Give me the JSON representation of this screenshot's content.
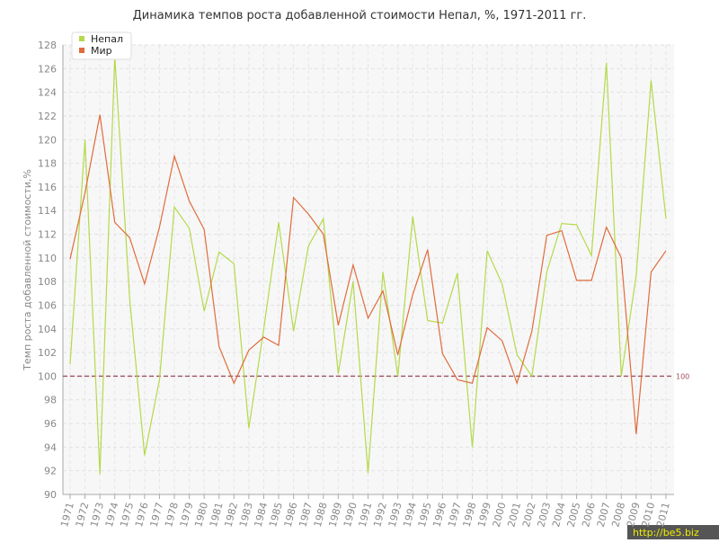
{
  "chart_data": {
    "type": "line",
    "title": "Динамика темпов роста добавленной стоимости Непал, %, 1971-2011 гг.",
    "y_label": "Темп роста добавленной стоимости,%",
    "categories": [
      "1971",
      "1972",
      "1973",
      "1974",
      "1975",
      "1976",
      "1977",
      "1978",
      "1979",
      "1980",
      "1981",
      "1982",
      "1983",
      "1984",
      "1985",
      "1986",
      "1987",
      "1988",
      "1989",
      "1990",
      "1991",
      "1992",
      "1993",
      "1994",
      "1995",
      "1996",
      "1997",
      "1998",
      "1999",
      "2000",
      "2001",
      "2002",
      "2003",
      "2004",
      "2005",
      "2006",
      "2007",
      "2008",
      "2009",
      "2010",
      "2011"
    ],
    "series": [
      {
        "name": "Непал",
        "color": "#b5d94a",
        "values": [
          101,
          120,
          91.7,
          127,
          106.5,
          93.3,
          99.7,
          114.3,
          112.5,
          105.5,
          110.5,
          109.5,
          95.6,
          104,
          113,
          103.8,
          111,
          113.3,
          100.2,
          108,
          91.8,
          108.8,
          100,
          113.5,
          104.7,
          104.5,
          108.7,
          94,
          110.6,
          107.8,
          101.8,
          100,
          108.8,
          112.9,
          112.8,
          110.2,
          126.5,
          100,
          108.5,
          125,
          113.3
        ]
      },
      {
        "name": "Мир",
        "color": "#e06c3c",
        "values": [
          109.9,
          115.5,
          122.1,
          113,
          111.7,
          107.8,
          112.6,
          118.6,
          114.8,
          112.4,
          102.5,
          99.4,
          102.2,
          103.3,
          102.6,
          115.1,
          113.7,
          112,
          104.3,
          109.4,
          104.9,
          107.2,
          101.8,
          106.9,
          110.7,
          101.9,
          99.7,
          99.4,
          104.1,
          103,
          99.4,
          103.8,
          111.9,
          112.3,
          108.1,
          108.1,
          112.6,
          110,
          95.1,
          108.8,
          110.6
        ]
      }
    ],
    "ylim": [
      90,
      128
    ],
    "yticks": [
      90,
      92,
      94,
      96,
      98,
      100,
      102,
      104,
      106,
      108,
      110,
      112,
      114,
      116,
      118,
      120,
      122,
      124,
      126,
      128
    ],
    "grid": true,
    "reference_line": 100,
    "legend": "top-left",
    "watermark": "http://be5.biz"
  }
}
